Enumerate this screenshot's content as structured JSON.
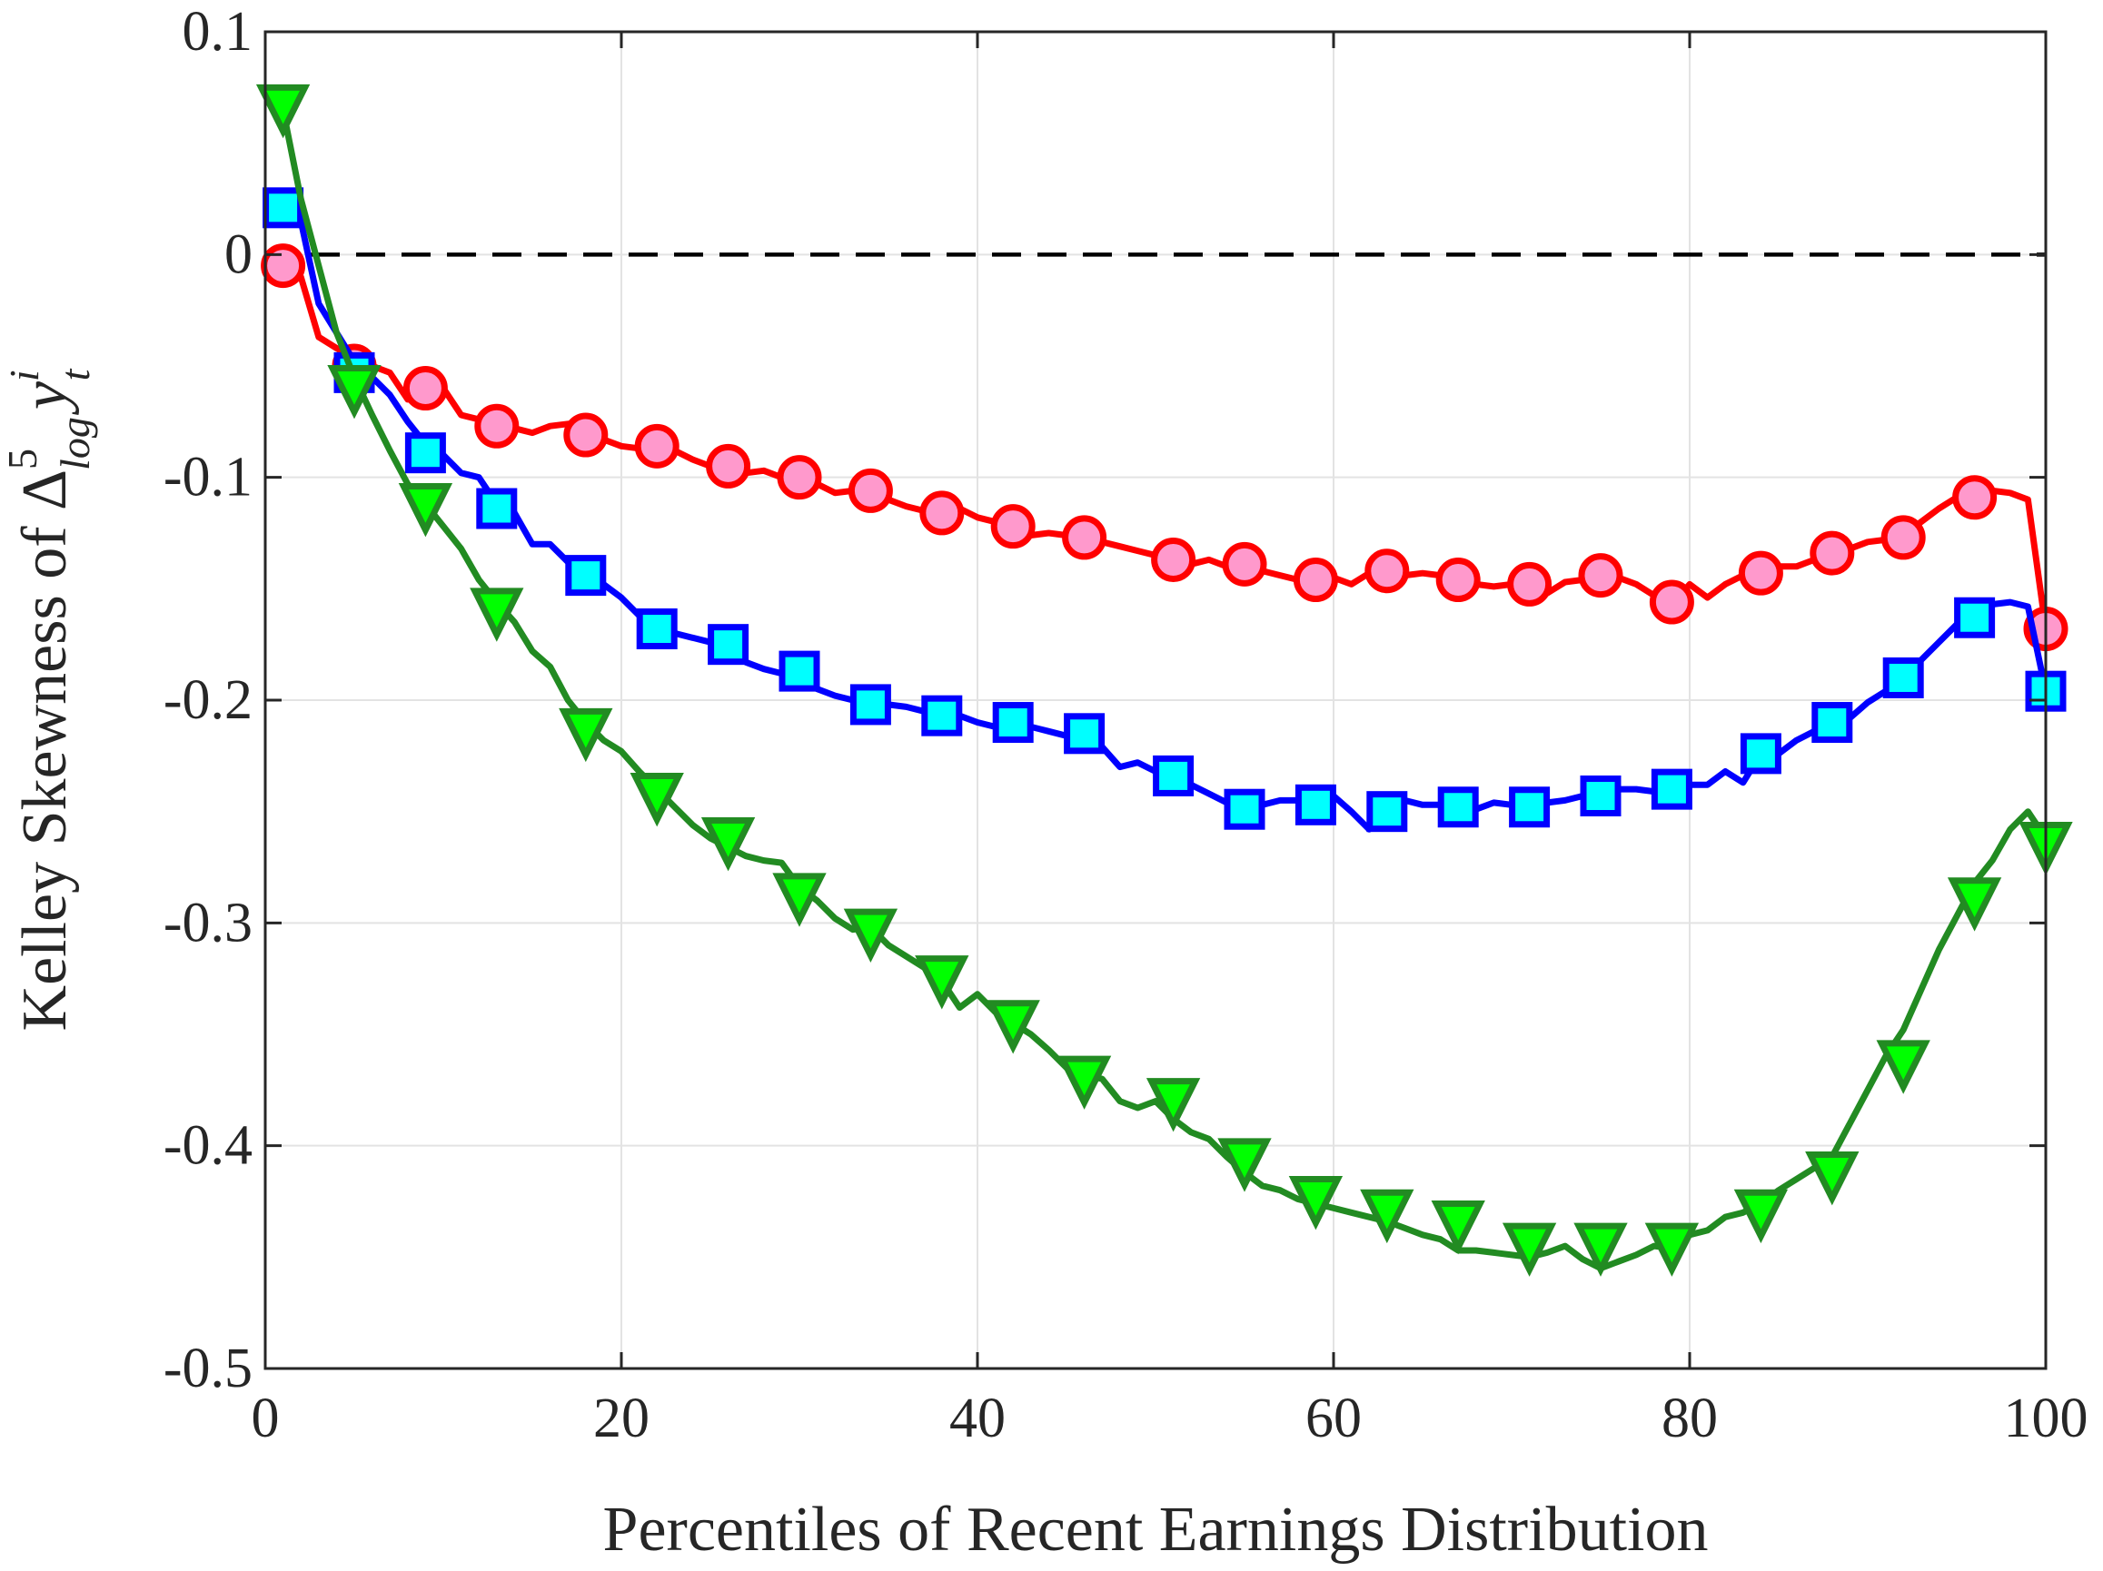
{
  "chart_data": {
    "type": "line",
    "xlabel": "Percentiles of Recent Earnings Distribution",
    "ylabel": "Kelley Skewness of Δ^5_log y^i_t",
    "ylabel_parts": {
      "prefix": "Kelley Skewness of Δ",
      "sup": "5",
      "sub": "log",
      "y": "y",
      "y_sup": "i",
      "y_sub": "t"
    },
    "xlim": [
      0,
      100
    ],
    "ylim": [
      -0.5,
      0.1
    ],
    "xticks": [
      0,
      20,
      40,
      60,
      80,
      100
    ],
    "xtick_labels": [
      "0",
      "20",
      "40",
      "60",
      "80",
      "100"
    ],
    "yticks": [
      0.1,
      0,
      -0.1,
      -0.2,
      -0.3,
      -0.4,
      -0.5
    ],
    "ytick_labels": [
      "0.1",
      "0",
      "-0.1",
      "-0.2",
      "-0.3",
      "-0.4",
      "-0.5"
    ],
    "grid": true,
    "reference_line": {
      "y": 0,
      "style": "dashed",
      "color": "#000000"
    },
    "series": [
      {
        "color": "#ff0000",
        "marker": "circle",
        "marker_fill": "#ff99cc",
        "line_x": [
          1,
          2,
          3,
          4,
          5,
          6,
          7,
          8,
          9,
          10,
          11,
          12,
          13,
          14,
          15,
          16,
          17,
          18,
          19,
          20,
          21,
          22,
          23,
          24,
          25,
          26,
          27,
          28,
          29,
          30,
          31,
          32,
          33,
          34,
          35,
          36,
          37,
          38,
          39,
          40,
          41,
          42,
          43,
          44,
          45,
          46,
          47,
          48,
          49,
          50,
          51,
          52,
          53,
          54,
          55,
          56,
          57,
          58,
          59,
          60,
          61,
          62,
          63,
          64,
          65,
          66,
          67,
          68,
          69,
          70,
          71,
          72,
          73,
          74,
          75,
          76,
          77,
          78,
          79,
          80,
          81,
          82,
          83,
          84,
          85,
          86,
          87,
          88,
          89,
          90,
          91,
          92,
          93,
          94,
          95,
          96,
          97,
          98,
          99,
          100
        ],
        "line_y": [
          -0.005,
          -0.01,
          -0.037,
          -0.042,
          -0.046,
          -0.05,
          -0.053,
          -0.065,
          -0.063,
          -0.06,
          -0.072,
          -0.074,
          -0.076,
          -0.078,
          -0.08,
          -0.077,
          -0.076,
          -0.08,
          -0.083,
          -0.086,
          -0.087,
          -0.085,
          -0.088,
          -0.092,
          -0.095,
          -0.096,
          -0.098,
          -0.097,
          -0.1,
          -0.101,
          -0.103,
          -0.107,
          -0.106,
          -0.108,
          -0.11,
          -0.113,
          -0.115,
          -0.116,
          -0.114,
          -0.118,
          -0.12,
          -0.122,
          -0.126,
          -0.125,
          -0.126,
          -0.127,
          -0.129,
          -0.131,
          -0.133,
          -0.135,
          -0.137,
          -0.139,
          -0.137,
          -0.14,
          -0.139,
          -0.142,
          -0.144,
          -0.146,
          -0.147,
          -0.145,
          -0.148,
          -0.143,
          -0.142,
          -0.144,
          -0.143,
          -0.144,
          -0.146,
          -0.148,
          -0.149,
          -0.148,
          -0.149,
          -0.152,
          -0.147,
          -0.146,
          -0.144,
          -0.145,
          -0.148,
          -0.153,
          -0.157,
          -0.148,
          -0.154,
          -0.148,
          -0.144,
          -0.143,
          -0.14,
          -0.14,
          -0.137,
          -0.134,
          -0.132,
          -0.129,
          -0.128,
          -0.126,
          -0.12,
          -0.114,
          -0.109,
          -0.108,
          -0.106,
          -0.107,
          -0.11,
          -0.168
        ],
        "marker_x": [
          1,
          5,
          9,
          13,
          18,
          22,
          26,
          30,
          34,
          38,
          42,
          46,
          51,
          55,
          59,
          63,
          67,
          71,
          75,
          79,
          84,
          88,
          92,
          96,
          100
        ],
        "marker_y": [
          -0.005,
          -0.05,
          -0.06,
          -0.077,
          -0.081,
          -0.086,
          -0.095,
          -0.1,
          -0.106,
          -0.116,
          -0.122,
          -0.127,
          -0.137,
          -0.139,
          -0.146,
          -0.142,
          -0.146,
          -0.148,
          -0.144,
          -0.156,
          -0.143,
          -0.134,
          -0.127,
          -0.109,
          -0.168
        ]
      },
      {
        "color": "#0000ff",
        "marker": "square",
        "marker_fill": "#00ffff",
        "line_x": [
          1,
          2,
          3,
          4,
          5,
          6,
          7,
          8,
          9,
          10,
          11,
          12,
          13,
          14,
          15,
          16,
          17,
          18,
          19,
          20,
          21,
          22,
          23,
          24,
          25,
          26,
          27,
          28,
          29,
          30,
          31,
          32,
          33,
          34,
          35,
          36,
          37,
          38,
          39,
          40,
          41,
          42,
          43,
          44,
          45,
          46,
          47,
          48,
          49,
          50,
          51,
          52,
          53,
          54,
          55,
          56,
          57,
          58,
          59,
          60,
          61,
          62,
          63,
          64,
          65,
          66,
          67,
          68,
          69,
          70,
          71,
          72,
          73,
          74,
          75,
          76,
          77,
          78,
          79,
          80,
          81,
          82,
          83,
          84,
          85,
          86,
          87,
          88,
          89,
          90,
          91,
          92,
          93,
          94,
          95,
          96,
          97,
          98,
          99,
          100
        ],
        "line_y": [
          0.021,
          0.015,
          -0.022,
          -0.035,
          -0.048,
          -0.055,
          -0.063,
          -0.075,
          -0.085,
          -0.09,
          -0.098,
          -0.1,
          -0.112,
          -0.116,
          -0.13,
          -0.13,
          -0.138,
          -0.145,
          -0.148,
          -0.154,
          -0.162,
          -0.168,
          -0.17,
          -0.172,
          -0.174,
          -0.175,
          -0.183,
          -0.186,
          -0.188,
          -0.187,
          -0.195,
          -0.198,
          -0.2,
          -0.203,
          -0.202,
          -0.203,
          -0.205,
          -0.208,
          -0.207,
          -0.21,
          -0.212,
          -0.21,
          -0.212,
          -0.214,
          -0.216,
          -0.216,
          -0.221,
          -0.23,
          -0.228,
          -0.232,
          -0.234,
          -0.238,
          -0.242,
          -0.246,
          -0.249,
          -0.247,
          -0.245,
          -0.245,
          -0.246,
          -0.243,
          -0.25,
          -0.258,
          -0.243,
          -0.245,
          -0.247,
          -0.247,
          -0.248,
          -0.249,
          -0.246,
          -0.247,
          -0.248,
          -0.246,
          -0.245,
          -0.243,
          -0.242,
          -0.24,
          -0.24,
          -0.241,
          -0.241,
          -0.238,
          -0.238,
          -0.232,
          -0.237,
          -0.224,
          -0.224,
          -0.218,
          -0.214,
          -0.21,
          -0.208,
          -0.201,
          -0.196,
          -0.19,
          -0.182,
          -0.174,
          -0.166,
          -0.163,
          -0.157,
          -0.156,
          -0.158,
          -0.196
        ],
        "marker_x": [
          1,
          5,
          9,
          13,
          18,
          22,
          26,
          30,
          34,
          38,
          42,
          46,
          51,
          55,
          59,
          63,
          67,
          71,
          75,
          79,
          84,
          88,
          92,
          96,
          100
        ],
        "marker_y": [
          0.021,
          -0.053,
          -0.089,
          -0.114,
          -0.144,
          -0.168,
          -0.175,
          -0.187,
          -0.202,
          -0.207,
          -0.21,
          -0.215,
          -0.234,
          -0.249,
          -0.247,
          -0.25,
          -0.248,
          -0.248,
          -0.243,
          -0.24,
          -0.224,
          -0.21,
          -0.19,
          -0.163,
          -0.196
        ]
      },
      {
        "color": "#228b22",
        "marker": "triangle-down",
        "marker_fill": "#00ff00",
        "line_x": [
          1,
          2,
          3,
          4,
          5,
          6,
          7,
          8,
          9,
          10,
          11,
          12,
          13,
          14,
          15,
          16,
          17,
          18,
          19,
          20,
          21,
          22,
          23,
          24,
          25,
          26,
          27,
          28,
          29,
          30,
          31,
          32,
          33,
          34,
          35,
          36,
          37,
          38,
          39,
          40,
          41,
          42,
          43,
          44,
          45,
          46,
          47,
          48,
          49,
          50,
          51,
          52,
          53,
          54,
          55,
          56,
          57,
          58,
          59,
          60,
          61,
          62,
          63,
          64,
          65,
          66,
          67,
          68,
          69,
          70,
          71,
          72,
          73,
          74,
          75,
          76,
          77,
          78,
          79,
          80,
          81,
          82,
          83,
          84,
          85,
          86,
          87,
          88,
          89,
          90,
          91,
          92,
          93,
          94,
          95,
          96,
          97,
          98,
          99,
          100
        ],
        "line_y": [
          0.065,
          0.025,
          -0.005,
          -0.035,
          -0.055,
          -0.072,
          -0.088,
          -0.103,
          -0.112,
          -0.122,
          -0.132,
          -0.146,
          -0.156,
          -0.165,
          -0.178,
          -0.185,
          -0.2,
          -0.21,
          -0.218,
          -0.223,
          -0.232,
          -0.24,
          -0.248,
          -0.256,
          -0.262,
          -0.266,
          -0.27,
          -0.272,
          -0.273,
          -0.284,
          -0.29,
          -0.298,
          -0.303,
          -0.302,
          -0.31,
          -0.315,
          -0.32,
          -0.326,
          -0.338,
          -0.332,
          -0.34,
          -0.345,
          -0.35,
          -0.357,
          -0.365,
          -0.368,
          -0.37,
          -0.38,
          -0.383,
          -0.38,
          -0.388,
          -0.394,
          -0.397,
          -0.405,
          -0.412,
          -0.418,
          -0.42,
          -0.424,
          -0.426,
          -0.428,
          -0.43,
          -0.432,
          -0.434,
          -0.437,
          -0.44,
          -0.442,
          -0.447,
          -0.447,
          -0.448,
          -0.449,
          -0.45,
          -0.448,
          -0.445,
          -0.451,
          -0.455,
          -0.452,
          -0.449,
          -0.445,
          -0.446,
          -0.44,
          -0.438,
          -0.432,
          -0.43,
          -0.426,
          -0.42,
          -0.415,
          -0.41,
          -0.405,
          -0.39,
          -0.375,
          -0.36,
          -0.348,
          -0.33,
          -0.312,
          -0.297,
          -0.282,
          -0.272,
          -0.258,
          -0.25,
          -0.262
        ],
        "marker_x": [
          1,
          5,
          9,
          13,
          18,
          22,
          26,
          30,
          34,
          38,
          42,
          46,
          51,
          55,
          59,
          63,
          67,
          71,
          75,
          79,
          84,
          88,
          92,
          96,
          100
        ],
        "marker_y": [
          0.066,
          -0.06,
          -0.113,
          -0.16,
          -0.214,
          -0.243,
          -0.263,
          -0.288,
          -0.304,
          -0.325,
          -0.345,
          -0.37,
          -0.38,
          -0.407,
          -0.424,
          -0.43,
          -0.435,
          -0.445,
          -0.445,
          -0.445,
          -0.43,
          -0.413,
          -0.363,
          -0.29,
          -0.265
        ]
      }
    ]
  }
}
